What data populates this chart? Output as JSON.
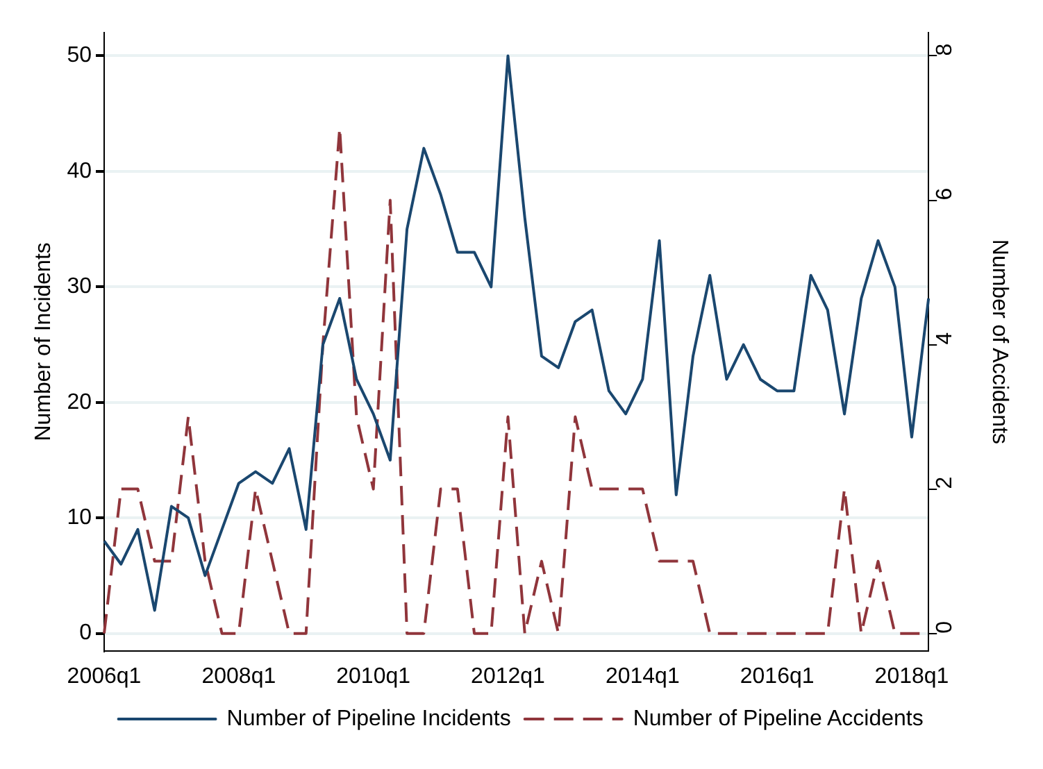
{
  "chart_data": {
    "type": "line",
    "ylabel": "Number of Incidents",
    "y2label": "Number of Accidents",
    "categories": [
      "2006q1",
      null,
      null,
      null,
      null,
      null,
      null,
      null,
      "2008q1",
      null,
      null,
      null,
      null,
      null,
      null,
      null,
      "2010q1",
      null,
      null,
      null,
      null,
      null,
      null,
      null,
      "2012q1",
      null,
      null,
      null,
      null,
      null,
      null,
      null,
      "2014q1",
      null,
      null,
      null,
      null,
      null,
      null,
      null,
      "2016q1",
      null,
      null,
      null,
      null,
      null,
      null,
      null,
      "2018q1",
      null
    ],
    "series": [
      {
        "name": "Number of Pipeline Incidents",
        "color": "#1a476f",
        "line_style": "solid",
        "values": [
          8,
          6,
          9,
          2,
          11,
          10,
          5,
          9,
          13,
          14,
          13,
          16,
          9,
          25,
          29,
          22,
          19,
          15,
          35,
          42,
          38,
          33,
          33,
          30,
          50,
          36,
          24,
          23,
          27,
          28,
          21,
          19,
          22,
          34,
          12,
          24,
          31,
          22,
          25,
          22,
          21,
          21,
          31,
          28,
          19,
          29,
          34,
          30,
          17,
          29
        ]
      },
      {
        "name": "Number of Pipeline Accidents",
        "color": "#90353b",
        "line_style": "dashed",
        "axis": "y2",
        "values": [
          0,
          2,
          2,
          1,
          1,
          3,
          1,
          0,
          0,
          2,
          1,
          0,
          0,
          4,
          7,
          3,
          2,
          6,
          0,
          0,
          2,
          2,
          0,
          0,
          3,
          0,
          1,
          0,
          3,
          2,
          2,
          2,
          2,
          1,
          1,
          1,
          0,
          0,
          0,
          0,
          0,
          0,
          0,
          0,
          2,
          0,
          1,
          0,
          0,
          0
        ]
      }
    ],
    "ylim": [
      -1.5,
      52
    ],
    "yticks": [
      0,
      10,
      20,
      30,
      40,
      50
    ],
    "y2lim": [
      -0.24,
      8.32
    ],
    "y2ticks": [
      0,
      2,
      4,
      6,
      8
    ],
    "grid": "y",
    "legend": "bottom",
    "marker": "none"
  }
}
